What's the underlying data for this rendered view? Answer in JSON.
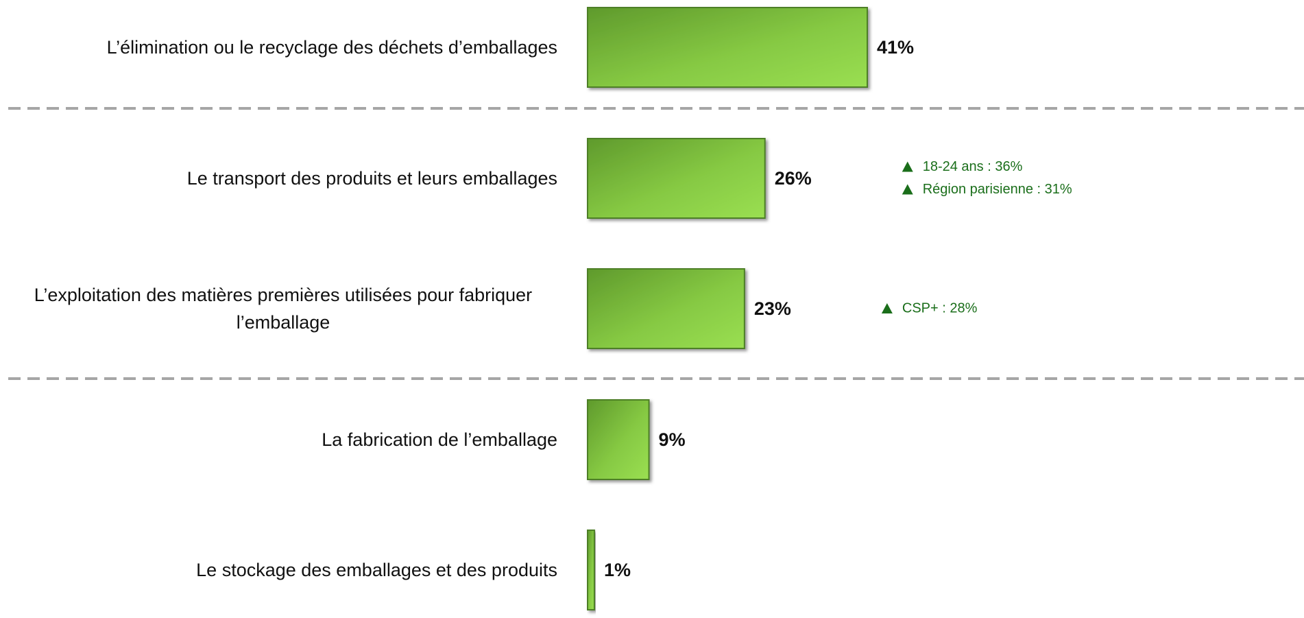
{
  "chart_data": {
    "type": "hbar",
    "categories": [
      "L’élimination ou le recyclage des déchets d’emballages",
      "Le transport des produits et leurs emballages",
      "L’exploitation des matières premières utilisées pour fabriquer l’emballage",
      "La fabrication de l’emballage",
      "Le stockage des emballages et des produits"
    ],
    "values": [
      41,
      26,
      23,
      9,
      1
    ],
    "value_labels": [
      "41%",
      "26%",
      "23%",
      "9%",
      "1%"
    ],
    "color": "#7cc242",
    "annotations": [
      {
        "category": "Le transport des produits et leurs emballages",
        "texts": [
          "18-24 ans  : 36%",
          "Région parisienne : 31%"
        ]
      },
      {
        "category": "L’exploitation des matières premières utilisées pour fabriquer l’emballage",
        "texts": [
          "CSP+  : 28%"
        ]
      }
    ]
  }
}
